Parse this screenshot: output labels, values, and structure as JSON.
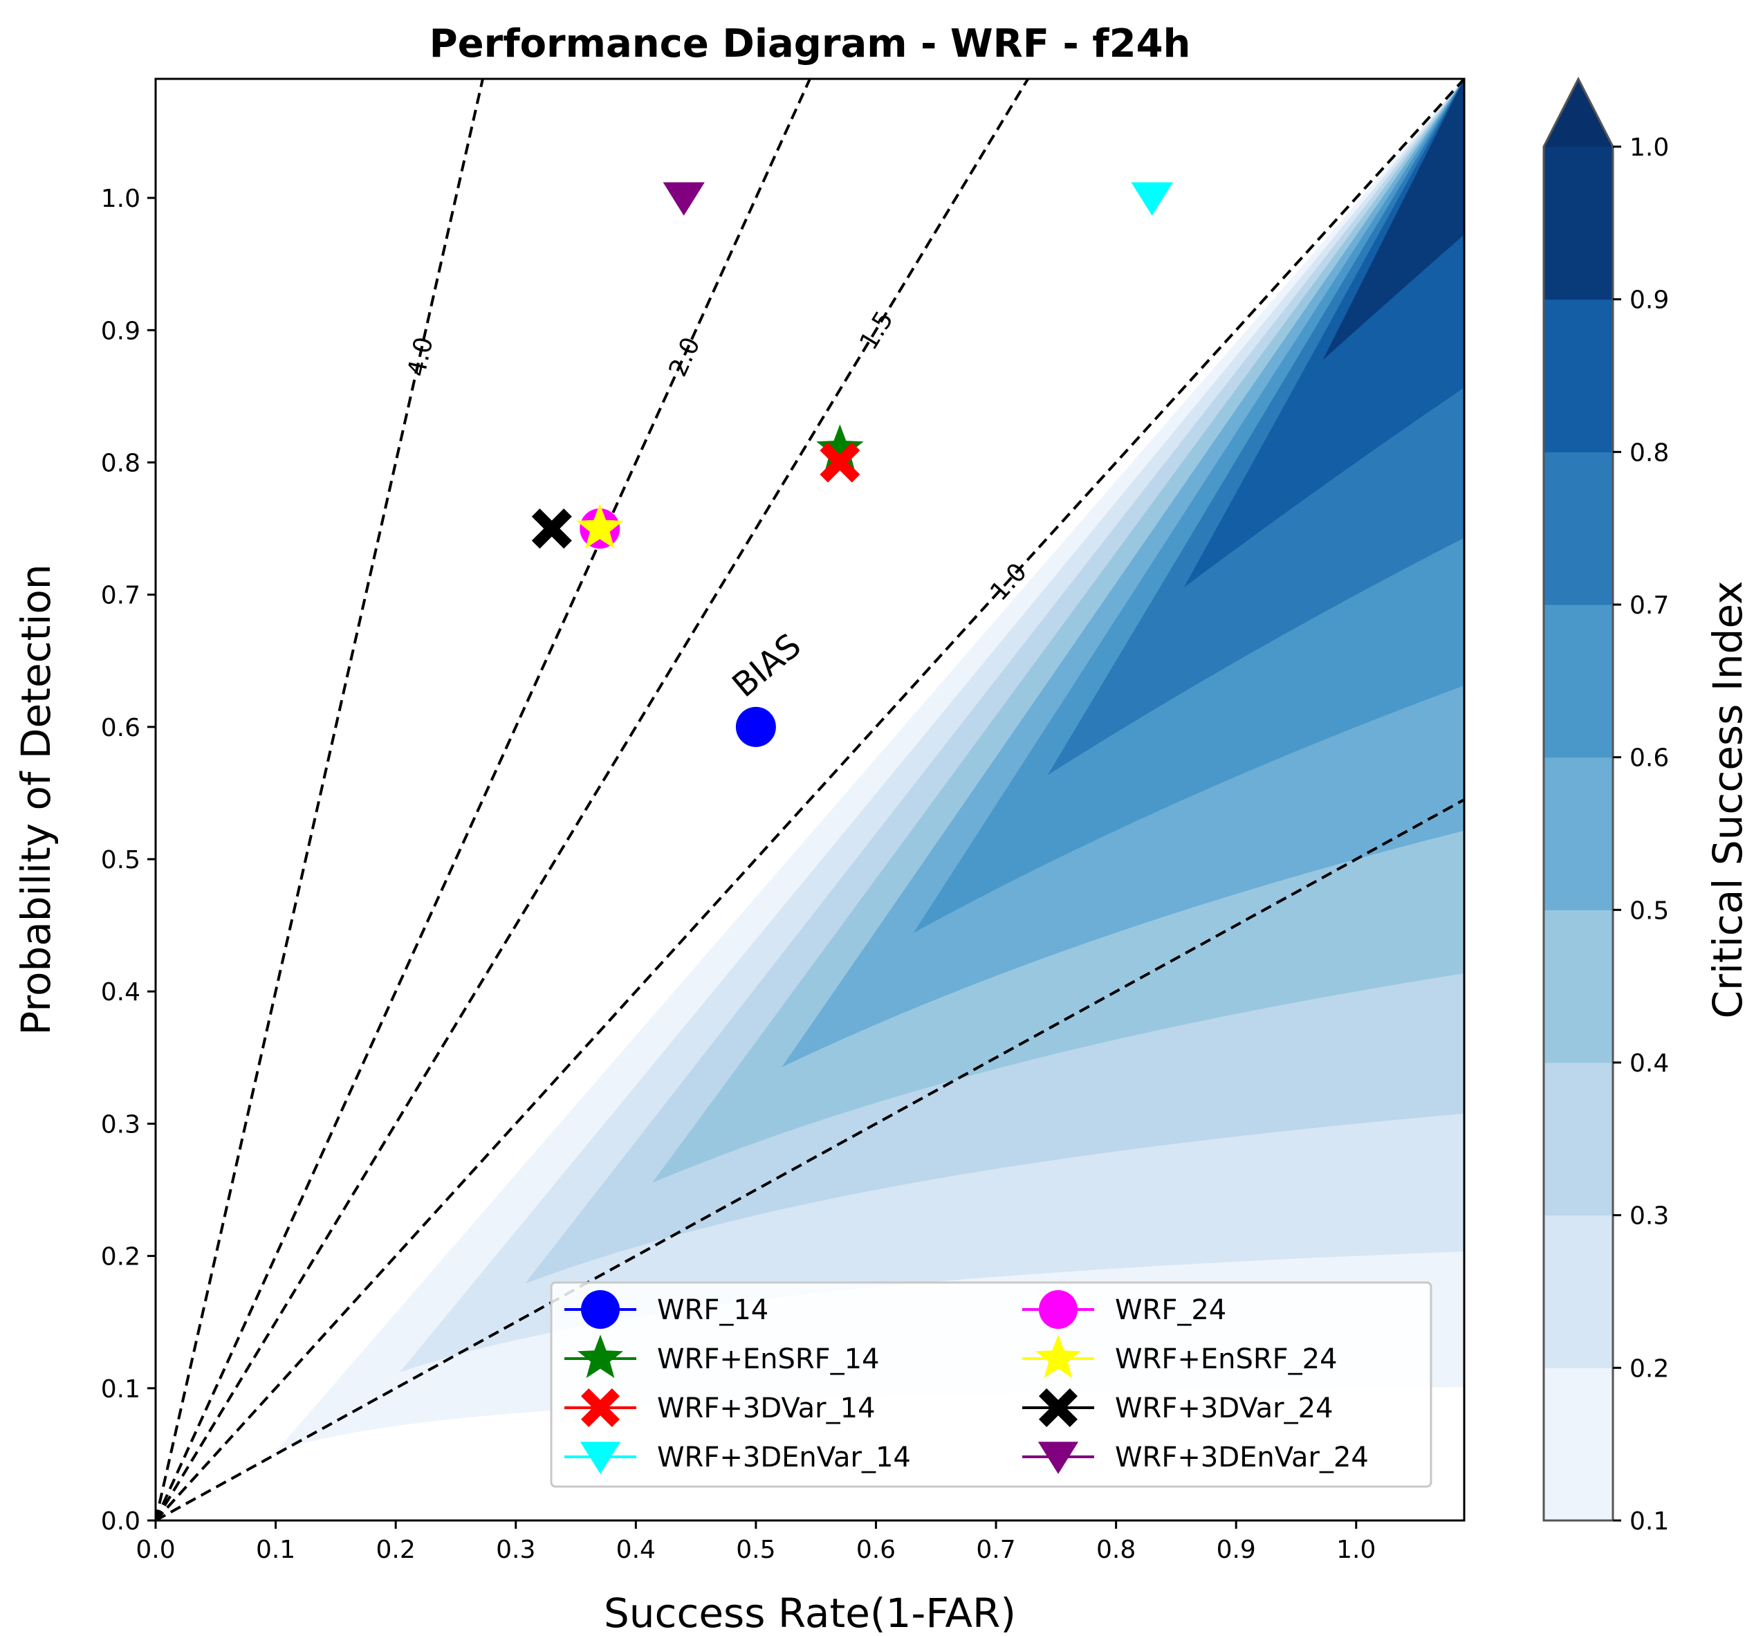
{
  "chart_data": {
    "type": "scatter",
    "subtype": "performance-diagram",
    "title": "Performance Diagram - WRF - f24h",
    "xlabel": "Success Rate(1-FAR)",
    "ylabel": "Probability of Detection",
    "xlim": [
      0.0,
      1.09
    ],
    "ylim": [
      0.0,
      1.09
    ],
    "xticks": [
      "0.0",
      "0.1",
      "0.2",
      "0.3",
      "0.4",
      "0.5",
      "0.6",
      "0.7",
      "0.8",
      "0.9",
      "1.0"
    ],
    "yticks": [
      "0.0",
      "0.1",
      "0.2",
      "0.3",
      "0.4",
      "0.5",
      "0.6",
      "0.7",
      "0.8",
      "0.9",
      "1.0"
    ],
    "colorbar": {
      "label": "Critical Success Index",
      "levels": [
        0.1,
        0.2,
        0.3,
        0.4,
        0.5,
        0.6,
        0.7,
        0.8,
        0.9,
        1.0
      ],
      "tick_labels": [
        "0.1",
        "0.2",
        "0.3",
        "0.4",
        "0.5",
        "0.6",
        "0.7",
        "0.8",
        "0.9",
        "1.0"
      ],
      "colors": [
        "#eef4fb",
        "#d7e6f4",
        "#bcd7eb",
        "#9ac7e0",
        "#6caed6",
        "#4a98c9",
        "#2c7ab8",
        "#135ea5",
        "#093a7a"
      ],
      "extend_color": "#08306b"
    },
    "bias_lines": {
      "label": "BIAS",
      "values": [
        0.5,
        1.0,
        1.5,
        2.0,
        4.0
      ],
      "labeled": [
        {
          "value": 1.0,
          "text": "1.0"
        },
        {
          "value": 1.5,
          "text": "1.5"
        },
        {
          "value": 2.0,
          "text": "2.0"
        },
        {
          "value": 4.0,
          "text": "4.0"
        }
      ]
    },
    "series": [
      {
        "name": "WRF_14",
        "x": 0.5,
        "y": 0.6,
        "marker": "circle",
        "color": "#0000ff"
      },
      {
        "name": "WRF+EnSRF_14",
        "x": 0.57,
        "y": 0.81,
        "marker": "star",
        "color": "#008000"
      },
      {
        "name": "WRF+3DVar_14",
        "x": 0.57,
        "y": 0.8,
        "marker": "x-filled",
        "color": "#ff0000"
      },
      {
        "name": "WRF+3DEnVar_14",
        "x": 0.83,
        "y": 1.0,
        "marker": "triangle-down",
        "color": "#00ffff"
      },
      {
        "name": "WRF_24",
        "x": 0.37,
        "y": 0.75,
        "marker": "circle",
        "color": "#ff00ff"
      },
      {
        "name": "WRF+EnSRF_24",
        "x": 0.37,
        "y": 0.75,
        "marker": "star",
        "color": "#ffff00"
      },
      {
        "name": "WRF+3DVar_24",
        "x": 0.33,
        "y": 0.75,
        "marker": "x-filled",
        "color": "#000000"
      },
      {
        "name": "WRF+3DEnVar_24",
        "x": 0.44,
        "y": 1.0,
        "marker": "triangle-down",
        "color": "#800080"
      }
    ],
    "legend": {
      "location": "lower-right",
      "columns": 2
    }
  }
}
